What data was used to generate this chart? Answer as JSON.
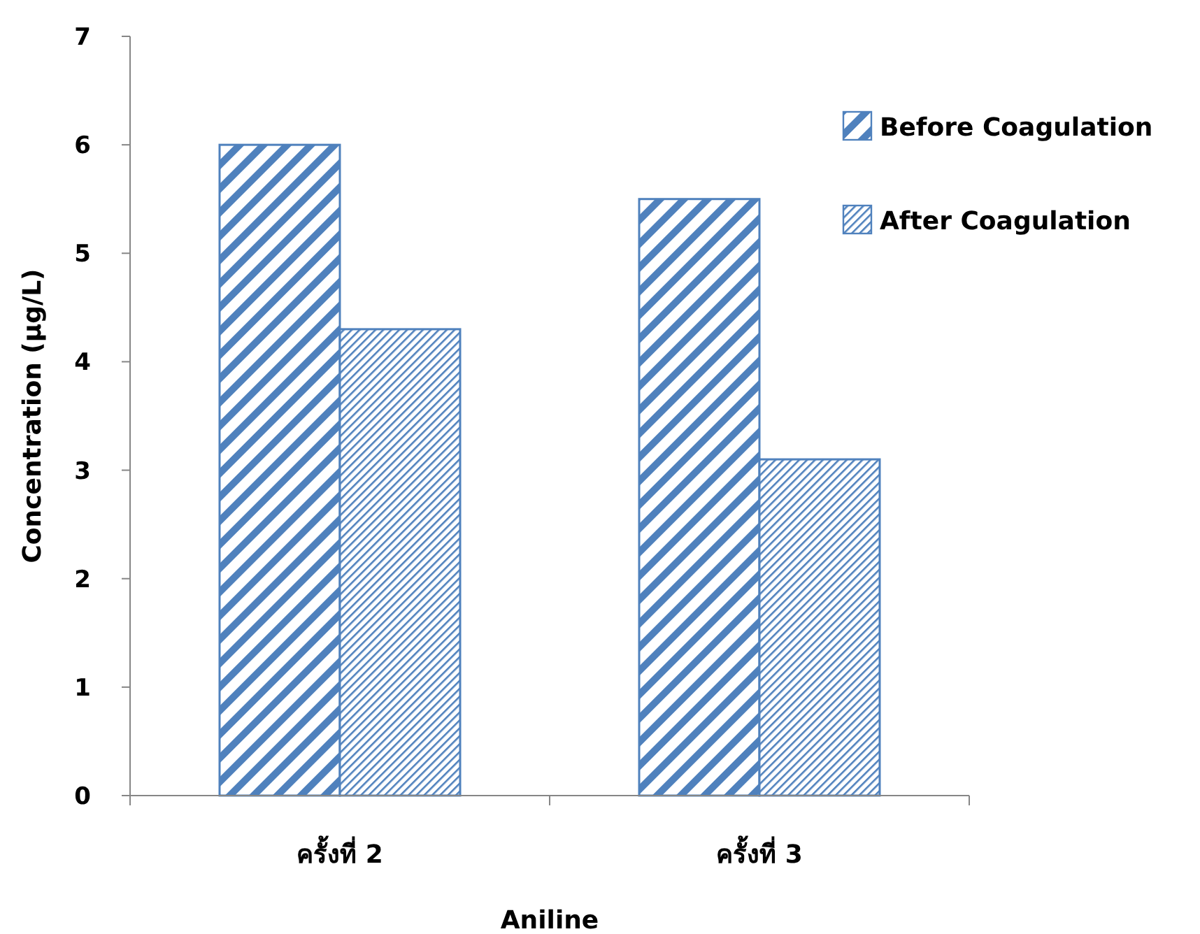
{
  "chart_data": {
    "type": "bar",
    "xlabel": "Aniline",
    "ylabel": "Concentration (µg/L)",
    "categories": [
      "ครั้งที่ 2",
      "ครั้งที่ 3"
    ],
    "series": [
      {
        "name": "Before Coagulation",
        "color": "#4f81bd",
        "values": [
          6.0,
          5.5
        ]
      },
      {
        "name": "After Coagulation",
        "color": "#4f81bd",
        "values": [
          4.3,
          3.1
        ]
      }
    ],
    "ylim": [
      0,
      7
    ],
    "yticks": [
      0,
      1,
      2,
      3,
      4,
      5,
      6,
      7
    ],
    "grid": false,
    "legend": "top right"
  }
}
